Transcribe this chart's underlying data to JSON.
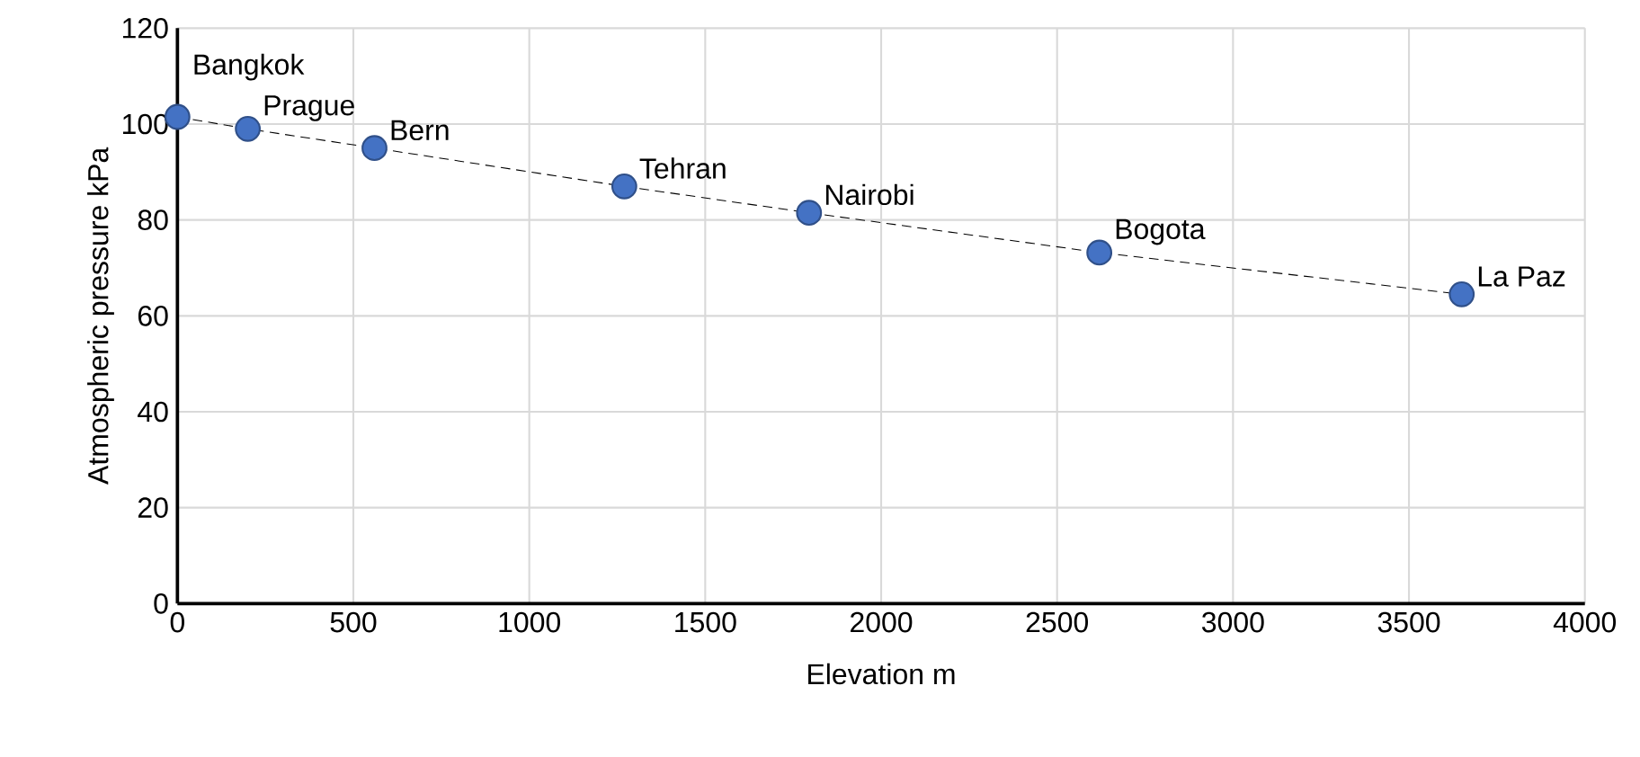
{
  "chart_data": {
    "type": "scatter",
    "xlabel": "Elevation  m",
    "ylabel": "Atmospheric pressure  kPa",
    "series": [
      {
        "color": "#4472c4",
        "x": [
          0,
          200,
          560,
          1270,
          1795,
          2620,
          3650
        ],
        "values": [
          101.5,
          99,
          95,
          87,
          81.5,
          73.2,
          64.5
        ]
      },
      {
        "type": "line",
        "color": "#000000",
        "line_style": "dashed",
        "marker": "none",
        "x": [
          0,
          200,
          560,
          1270,
          1795,
          2620,
          3650
        ],
        "values": [
          101.5,
          99,
          95,
          87,
          81.5,
          73.2,
          64.5
        ]
      }
    ],
    "annotations": [
      {
        "text": "Bangkok",
        "x": 0,
        "y": 101.5
      },
      {
        "text": "Prague",
        "x": 200,
        "y": 99
      },
      {
        "text": "Bern",
        "x": 560,
        "y": 95
      },
      {
        "text": "Tehran",
        "x": 1270,
        "y": 87
      },
      {
        "text": "Nairobi",
        "x": 1795,
        "y": 81.5
      },
      {
        "text": "Bogota",
        "x": 2620,
        "y": 73.2
      },
      {
        "text": "La Paz",
        "x": 3650,
        "y": 64.5
      }
    ],
    "xlim": [
      0,
      4000
    ],
    "xticks": [
      0,
      500,
      1000,
      1500,
      2000,
      2500,
      3000,
      3500,
      4000
    ],
    "ylim": [
      0,
      120
    ],
    "yticks": [
      0,
      20,
      40,
      60,
      80,
      100,
      120
    ],
    "grid": true,
    "marker": "circle"
  }
}
